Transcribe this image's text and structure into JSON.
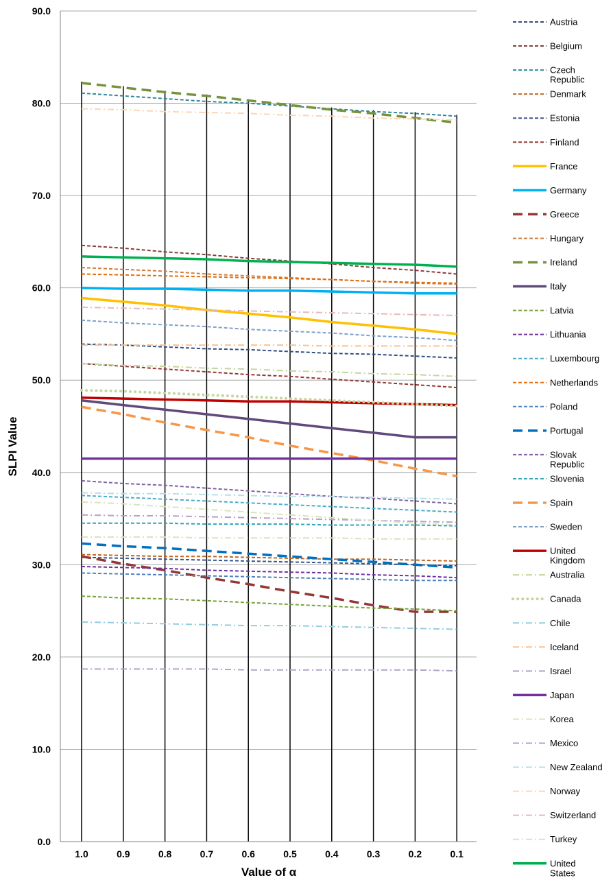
{
  "chart_data": {
    "type": "line",
    "xlabel": "Value of α",
    "ylabel": "SLPI Value",
    "categories": [
      "1.0",
      "0.9",
      "0.8",
      "0.7",
      "0.6",
      "0.5",
      "0.4",
      "0.3",
      "0.2",
      "0.1"
    ],
    "ylim": [
      0,
      90
    ],
    "yticks": [
      "0.0",
      "10.0",
      "20.0",
      "30.0",
      "40.0",
      "50.0",
      "60.0",
      "70.0",
      "80.0",
      "90.0"
    ],
    "grid": "horizontal",
    "legend_position": "right",
    "series": [
      {
        "name": "Austria",
        "color": "#2f4e7e",
        "style": "dash",
        "values": [
          53.9,
          53.8,
          53.6,
          53.4,
          53.3,
          53.1,
          52.9,
          52.8,
          52.6,
          52.4
        ]
      },
      {
        "name": "Belgium",
        "color": "#8b3a3a",
        "style": "dash",
        "values": [
          64.6,
          64.3,
          63.9,
          63.6,
          63.2,
          62.9,
          62.6,
          62.2,
          61.9,
          61.5
        ]
      },
      {
        "name": "Czech Republic",
        "color": "#31859c",
        "style": "dash",
        "values": [
          81.1,
          80.8,
          80.5,
          80.2,
          80.0,
          79.7,
          79.4,
          79.1,
          78.9,
          78.6
        ]
      },
      {
        "name": "Denmark",
        "color": "#c0661e",
        "style": "dash",
        "values": [
          31.1,
          31.0,
          30.9,
          30.9,
          30.8,
          30.7,
          30.6,
          30.6,
          30.5,
          30.4
        ]
      },
      {
        "name": "Estonia",
        "color": "#35558a",
        "style": "dash",
        "values": [
          30.8,
          30.7,
          30.6,
          30.5,
          30.4,
          30.3,
          30.2,
          30.1,
          30.0,
          29.9
        ]
      },
      {
        "name": "Finland",
        "color": "#963634",
        "style": "dash",
        "values": [
          51.8,
          51.5,
          51.2,
          50.9,
          50.6,
          50.4,
          50.1,
          49.8,
          49.5,
          49.2
        ]
      },
      {
        "name": "France",
        "color": "#ffc000",
        "style": "solid-thick",
        "values": [
          58.9,
          58.5,
          58.1,
          57.6,
          57.2,
          56.8,
          56.3,
          55.9,
          55.5,
          55.0
        ]
      },
      {
        "name": "Germany",
        "color": "#00b0f0",
        "style": "solid-thick",
        "values": [
          60.0,
          59.9,
          59.9,
          59.8,
          59.7,
          59.7,
          59.6,
          59.5,
          59.4,
          59.4
        ]
      },
      {
        "name": "Greece",
        "color": "#943634",
        "style": "dash-thick",
        "values": [
          30.9,
          30.1,
          29.4,
          28.6,
          27.9,
          27.1,
          26.4,
          25.6,
          24.9,
          24.9
        ]
      },
      {
        "name": "Hungary",
        "color": "#d07d3a",
        "style": "dash",
        "values": [
          62.2,
          62.0,
          61.8,
          61.5,
          61.3,
          61.1,
          60.9,
          60.7,
          60.5,
          60.4
        ]
      },
      {
        "name": "Ireland",
        "color": "#76923c",
        "style": "dash-thick",
        "values": [
          82.2,
          81.7,
          81.2,
          80.8,
          80.3,
          79.8,
          79.3,
          78.9,
          78.4,
          77.9
        ]
      },
      {
        "name": "Italy",
        "color": "#604a7b",
        "style": "solid-thick",
        "values": [
          47.8,
          47.3,
          46.8,
          46.3,
          45.8,
          45.3,
          44.8,
          44.3,
          43.8,
          43.8
        ]
      },
      {
        "name": "Latvia",
        "color": "#77a33b",
        "style": "dash",
        "values": [
          26.6,
          26.4,
          26.3,
          26.1,
          25.9,
          25.7,
          25.5,
          25.3,
          25.2,
          25.0
        ]
      },
      {
        "name": "Lithuania",
        "color": "#7030a0",
        "style": "dash",
        "values": [
          29.8,
          29.7,
          29.6,
          29.4,
          29.3,
          29.2,
          29.1,
          28.9,
          28.8,
          28.6
        ]
      },
      {
        "name": "Luxembourg",
        "color": "#4bacc6",
        "style": "dash",
        "values": [
          37.5,
          37.3,
          37.1,
          36.9,
          36.7,
          36.5,
          36.3,
          36.1,
          35.9,
          35.7
        ]
      },
      {
        "name": "Netherlands",
        "color": "#e46c0a",
        "style": "dash",
        "values": [
          61.5,
          61.4,
          61.3,
          61.2,
          61.1,
          61.0,
          60.9,
          60.7,
          60.6,
          60.5
        ]
      },
      {
        "name": "Poland",
        "color": "#4f81bd",
        "style": "dash",
        "values": [
          29.1,
          29.0,
          28.9,
          28.8,
          28.7,
          28.6,
          28.5,
          28.4,
          28.3,
          28.3
        ]
      },
      {
        "name": "Portugal",
        "color": "#0070c0",
        "style": "dash-thick",
        "values": [
          32.3,
          32.0,
          31.8,
          31.5,
          31.2,
          30.9,
          30.6,
          30.3,
          30.0,
          29.7
        ]
      },
      {
        "name": "Slovak Republic",
        "color": "#8064a2",
        "style": "dash",
        "values": [
          39.1,
          38.8,
          38.6,
          38.3,
          38.0,
          37.7,
          37.4,
          37.2,
          36.9,
          36.6
        ]
      },
      {
        "name": "Slovenia",
        "color": "#31a4b8",
        "style": "dash",
        "values": [
          34.5,
          34.5,
          34.5,
          34.4,
          34.4,
          34.4,
          34.3,
          34.3,
          34.3,
          34.2
        ]
      },
      {
        "name": "Spain",
        "color": "#f79646",
        "style": "dash-thick",
        "values": [
          47.1,
          46.3,
          45.4,
          44.6,
          43.8,
          42.9,
          42.1,
          41.3,
          40.4,
          39.6
        ]
      },
      {
        "name": "Sweden",
        "color": "#7f9fcb",
        "style": "dash",
        "values": [
          56.5,
          56.2,
          56.0,
          55.8,
          55.5,
          55.3,
          55.1,
          54.8,
          54.6,
          54.3
        ]
      },
      {
        "name": "United Kingdom",
        "color": "#c00000",
        "style": "solid-thick",
        "values": [
          48.1,
          48.0,
          47.9,
          47.8,
          47.7,
          47.7,
          47.6,
          47.5,
          47.4,
          47.3
        ]
      },
      {
        "name": "Australia",
        "color": "#c3d69b",
        "style": "dashdot",
        "values": [
          51.8,
          51.6,
          51.5,
          51.3,
          51.2,
          51.0,
          50.9,
          50.7,
          50.6,
          50.4
        ]
      },
      {
        "name": "Canada",
        "color": "#c3d69b",
        "style": "dotted",
        "values": [
          48.9,
          48.8,
          48.6,
          48.4,
          48.2,
          48.0,
          47.8,
          47.6,
          47.4,
          47.2
        ]
      },
      {
        "name": "Chile",
        "color": "#93cddd",
        "style": "dashdot",
        "values": [
          23.8,
          23.7,
          23.6,
          23.5,
          23.4,
          23.4,
          23.3,
          23.2,
          23.1,
          23.0
        ]
      },
      {
        "name": "Iceland",
        "color": "#fac090",
        "style": "dashdot",
        "values": [
          53.8,
          53.8,
          53.8,
          53.8,
          53.8,
          53.8,
          53.7,
          53.7,
          53.7,
          53.7
        ]
      },
      {
        "name": "Israel",
        "color": "#b3a2c7",
        "style": "dashdot",
        "values": [
          35.4,
          35.3,
          35.3,
          35.2,
          35.1,
          35.0,
          34.9,
          34.8,
          34.7,
          34.6
        ]
      },
      {
        "name": "Japan",
        "color": "#7030a0",
        "style": "solid-thick",
        "values": [
          41.5,
          41.5,
          41.5,
          41.5,
          41.5,
          41.5,
          41.5,
          41.5,
          41.5,
          41.5
        ]
      },
      {
        "name": "Korea",
        "color": "#d7e4bd",
        "style": "dashdot",
        "values": [
          33.0,
          33.0,
          33.0,
          32.9,
          32.9,
          32.9,
          32.9,
          32.8,
          32.8,
          32.8
        ]
      },
      {
        "name": "Mexico",
        "color": "#b3a2c7",
        "style": "dashdot",
        "values": [
          18.7,
          18.7,
          18.7,
          18.7,
          18.6,
          18.6,
          18.6,
          18.6,
          18.6,
          18.5
        ]
      },
      {
        "name": "New Zealand",
        "color": "#b7dee8",
        "style": "dashdot",
        "values": [
          37.8,
          37.7,
          37.7,
          37.6,
          37.5,
          37.4,
          37.4,
          37.3,
          37.2,
          37.1
        ]
      },
      {
        "name": "Norway",
        "color": "#fcd5b4",
        "style": "dashdot",
        "values": [
          79.4,
          79.3,
          79.1,
          79.0,
          78.9,
          78.7,
          78.6,
          78.4,
          78.3,
          78.2
        ]
      },
      {
        "name": "Switzerland",
        "color": "#e6b9b8",
        "style": "dashdot",
        "values": [
          57.9,
          57.8,
          57.7,
          57.6,
          57.5,
          57.4,
          57.3,
          57.2,
          57.1,
          57.0
        ]
      },
      {
        "name": "Turkey",
        "color": "#d8e4bc",
        "style": "dashdot",
        "values": [
          36.8,
          36.6,
          36.3,
          36.0,
          35.7,
          35.4,
          35.1,
          34.8,
          34.5,
          34.3
        ]
      },
      {
        "name": "United States",
        "color": "#00b050",
        "style": "solid-thick",
        "values": [
          63.4,
          63.3,
          63.2,
          63.1,
          62.9,
          62.8,
          62.7,
          62.6,
          62.5,
          62.3
        ]
      }
    ]
  }
}
